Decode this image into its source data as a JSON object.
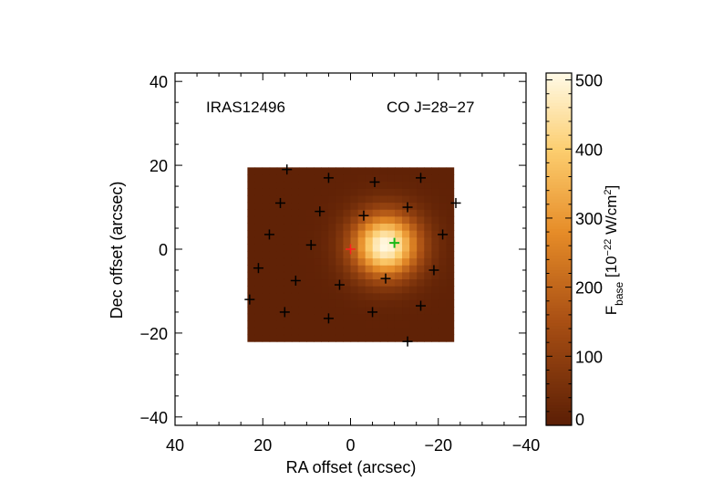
{
  "chart_data": {
    "type": "heatmap",
    "source_label": "IRAS12496",
    "line_label": "CO J=28−27",
    "xlabel": "RA offset (arcsec)",
    "ylabel": "Dec offset (arcsec)",
    "xlim": [
      40,
      -40
    ],
    "ylim": [
      -42,
      42
    ],
    "x_ticks": [
      40,
      20,
      0,
      -20,
      -40
    ],
    "x_tick_labels": [
      "40",
      "20",
      "0",
      "−20",
      "−40"
    ],
    "y_ticks": [
      -40,
      -20,
      0,
      20,
      40
    ],
    "y_tick_labels": [
      "−40",
      "−20",
      "0",
      "20",
      "40"
    ],
    "map_extent": {
      "ra": [
        23.5,
        -23.5
      ],
      "dec": [
        -22,
        19.5
      ]
    },
    "colorbar": {
      "label_main": "F",
      "label_sub": "base",
      "label_unit_a": " [10",
      "label_unit_exp1": "−22",
      "label_unit_b": " W/cm",
      "label_unit_exp2": "2",
      "label_unit_c": "]",
      "range": [
        0,
        510
      ],
      "ticks": [
        0,
        100,
        200,
        300,
        400,
        500
      ],
      "tick_labels": [
        "0",
        "100",
        "200",
        "300",
        "400",
        "500"
      ]
    },
    "emission_peak": {
      "ra": -8,
      "dec": 1,
      "value": 510,
      "background": 12
    },
    "spaxels": [
      [
        14.5,
        19
      ],
      [
        5,
        17
      ],
      [
        -16,
        17
      ],
      [
        -5.5,
        16
      ],
      [
        16,
        11
      ],
      [
        -13,
        10
      ],
      [
        -24,
        11
      ],
      [
        7,
        9
      ],
      [
        -3,
        8
      ],
      [
        18.5,
        3.5
      ],
      [
        -21,
        3.5
      ],
      [
        9,
        1
      ],
      [
        21,
        -4.5
      ],
      [
        -19,
        -5
      ],
      [
        12.5,
        -7.5
      ],
      [
        2.5,
        -8.5
      ],
      [
        -8,
        -7
      ],
      [
        15,
        -15
      ],
      [
        -16,
        -13.5
      ],
      [
        5,
        -16.5
      ],
      [
        -5,
        -15
      ],
      [
        23,
        -12
      ],
      [
        -13,
        -22
      ]
    ],
    "reference_marker": {
      "ra": 0,
      "dec": 0,
      "color": "#ff2020"
    },
    "peak_marker": {
      "ra": -10,
      "dec": 1.5,
      "color": "#18b818"
    }
  }
}
